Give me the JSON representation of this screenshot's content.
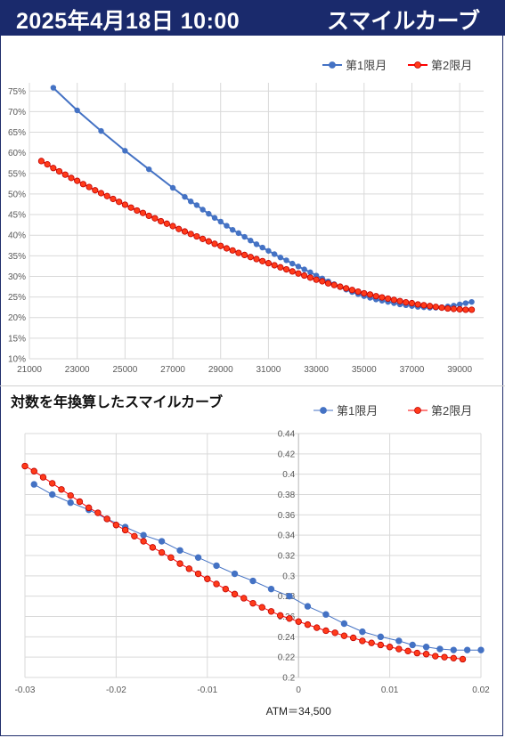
{
  "header": {
    "datetime": "2025年4月18日 10:00",
    "title": "スマイルカーブ"
  },
  "colors": {
    "header_bg": "#1a2a6c",
    "series1": "#4472c4",
    "series2": "#ff0000",
    "series2_fill": "#ff3b1a",
    "grid": "#d9d9d9"
  },
  "chart_data": [
    {
      "type": "line",
      "title": "",
      "xlabel": "",
      "ylabel": "",
      "xlim": [
        21000,
        40000
      ],
      "ylim": [
        0.1,
        0.77
      ],
      "xticks": [
        21000,
        23000,
        25000,
        27000,
        29000,
        31000,
        33000,
        35000,
        37000,
        39000
      ],
      "yticks": [
        0.1,
        0.15,
        0.2,
        0.25,
        0.3,
        0.35,
        0.4,
        0.45,
        0.5,
        0.55,
        0.6,
        0.65,
        0.7,
        0.75
      ],
      "ytick_labels": [
        "10%",
        "15%",
        "20%",
        "25%",
        "30%",
        "35%",
        "40%",
        "45%",
        "50%",
        "55%",
        "60%",
        "65%",
        "70%",
        "75%"
      ],
      "legend": "top-right",
      "grid": true,
      "series": [
        {
          "name": "第1限月",
          "x": [
            22000,
            23000,
            24000,
            25000,
            26000,
            27000,
            27500,
            27750,
            28000,
            28250,
            28500,
            28750,
            29000,
            29250,
            29500,
            29750,
            30000,
            30250,
            30500,
            30750,
            31000,
            31250,
            31500,
            31750,
            32000,
            32250,
            32500,
            32750,
            33000,
            33250,
            33500,
            33750,
            34000,
            34250,
            34500,
            34750,
            35000,
            35250,
            35500,
            35750,
            36000,
            36250,
            36500,
            36750,
            37000,
            37250,
            37500,
            37750,
            38000,
            38250,
            38500,
            38750,
            39000,
            39250,
            39500
          ],
          "values": [
            0.758,
            0.703,
            0.653,
            0.605,
            0.56,
            0.515,
            0.493,
            0.482,
            0.473,
            0.462,
            0.452,
            0.442,
            0.433,
            0.423,
            0.413,
            0.405,
            0.396,
            0.387,
            0.378,
            0.37,
            0.362,
            0.354,
            0.346,
            0.339,
            0.331,
            0.324,
            0.317,
            0.31,
            0.302,
            0.295,
            0.288,
            0.281,
            0.274,
            0.268,
            0.262,
            0.257,
            0.252,
            0.248,
            0.244,
            0.241,
            0.238,
            0.235,
            0.232,
            0.23,
            0.228,
            0.226,
            0.225,
            0.224,
            0.224,
            0.225,
            0.227,
            0.229,
            0.232,
            0.235,
            0.238
          ]
        },
        {
          "name": "第2限月",
          "x": [
            21500,
            21750,
            22000,
            22250,
            22500,
            22750,
            23000,
            23250,
            23500,
            23750,
            24000,
            24250,
            24500,
            24750,
            25000,
            25250,
            25500,
            25750,
            26000,
            26250,
            26500,
            26750,
            27000,
            27250,
            27500,
            27750,
            28000,
            28250,
            28500,
            28750,
            29000,
            29250,
            29500,
            29750,
            30000,
            30250,
            30500,
            30750,
            31000,
            31250,
            31500,
            31750,
            32000,
            32250,
            32500,
            32750,
            33000,
            33250,
            33500,
            33750,
            34000,
            34250,
            34500,
            34750,
            35000,
            35250,
            35500,
            35750,
            36000,
            36250,
            36500,
            36750,
            37000,
            37250,
            37500,
            37750,
            38000,
            38250,
            38500,
            38750,
            39000,
            39250,
            39500
          ],
          "values": [
            0.58,
            0.572,
            0.563,
            0.555,
            0.547,
            0.539,
            0.532,
            0.524,
            0.517,
            0.509,
            0.502,
            0.495,
            0.488,
            0.481,
            0.474,
            0.467,
            0.46,
            0.454,
            0.447,
            0.441,
            0.434,
            0.428,
            0.422,
            0.415,
            0.409,
            0.403,
            0.397,
            0.391,
            0.385,
            0.379,
            0.374,
            0.368,
            0.363,
            0.357,
            0.352,
            0.347,
            0.342,
            0.337,
            0.332,
            0.327,
            0.322,
            0.317,
            0.312,
            0.307,
            0.302,
            0.297,
            0.292,
            0.288,
            0.283,
            0.279,
            0.275,
            0.271,
            0.267,
            0.263,
            0.259,
            0.256,
            0.252,
            0.249,
            0.246,
            0.243,
            0.24,
            0.237,
            0.235,
            0.232,
            0.23,
            0.228,
            0.226,
            0.224,
            0.222,
            0.221,
            0.22,
            0.219,
            0.219
          ]
        }
      ]
    },
    {
      "type": "scatter",
      "title": "対数を年換算したスマイルカーブ",
      "xlabel": "ATM＝34,500",
      "ylabel": "",
      "xlim": [
        -0.03,
        0.02
      ],
      "ylim": [
        0.2,
        0.44
      ],
      "xticks": [
        -0.03,
        -0.02,
        -0.01,
        0,
        0.01,
        0.02
      ],
      "xtick_labels": [
        "-0.03",
        "-0.02",
        "-0.01",
        "0",
        "0.01",
        "0.02"
      ],
      "yticks": [
        0.2,
        0.22,
        0.24,
        0.26,
        0.28,
        0.3,
        0.32,
        0.34,
        0.36,
        0.38,
        0.4,
        0.42,
        0.44
      ],
      "ytick_labels": [
        "0.2",
        "0.22",
        "0.24",
        "0.26",
        "0.28",
        "0.3",
        "0.32",
        "0.34",
        "0.36",
        "0.38",
        "0.4",
        "0.42",
        "0.44"
      ],
      "legend": "top-right",
      "grid": true,
      "series": [
        {
          "name": "第1限月",
          "x": [
            -0.029,
            -0.027,
            -0.025,
            -0.023,
            -0.021,
            -0.019,
            -0.017,
            -0.015,
            -0.013,
            -0.011,
            -0.009,
            -0.007,
            -0.005,
            -0.003,
            -0.001,
            0.001,
            0.003,
            0.005,
            0.007,
            0.009,
            0.011,
            0.0125,
            0.014,
            0.0155,
            0.017,
            0.0185,
            0.02
          ],
          "values": [
            0.39,
            0.38,
            0.372,
            0.365,
            0.356,
            0.348,
            0.34,
            0.334,
            0.325,
            0.318,
            0.31,
            0.302,
            0.295,
            0.287,
            0.28,
            0.27,
            0.262,
            0.253,
            0.245,
            0.24,
            0.236,
            0.232,
            0.23,
            0.228,
            0.227,
            0.227,
            0.227
          ]
        },
        {
          "name": "第2限月",
          "x": [
            -0.03,
            -0.029,
            -0.028,
            -0.027,
            -0.026,
            -0.025,
            -0.024,
            -0.023,
            -0.022,
            -0.021,
            -0.02,
            -0.019,
            -0.018,
            -0.017,
            -0.016,
            -0.015,
            -0.014,
            -0.013,
            -0.012,
            -0.011,
            -0.01,
            -0.009,
            -0.008,
            -0.007,
            -0.006,
            -0.005,
            -0.004,
            -0.003,
            -0.002,
            -0.001,
            0,
            0.001,
            0.002,
            0.003,
            0.004,
            0.005,
            0.006,
            0.007,
            0.008,
            0.009,
            0.01,
            0.011,
            0.012,
            0.013,
            0.014,
            0.015,
            0.016,
            0.017,
            0.018
          ],
          "values": [
            0.408,
            0.403,
            0.397,
            0.391,
            0.385,
            0.379,
            0.373,
            0.367,
            0.362,
            0.356,
            0.35,
            0.345,
            0.339,
            0.334,
            0.328,
            0.323,
            0.318,
            0.312,
            0.307,
            0.302,
            0.297,
            0.292,
            0.287,
            0.282,
            0.278,
            0.273,
            0.269,
            0.265,
            0.261,
            0.258,
            0.255,
            0.252,
            0.249,
            0.246,
            0.244,
            0.241,
            0.239,
            0.236,
            0.234,
            0.232,
            0.23,
            0.228,
            0.226,
            0.224,
            0.223,
            0.221,
            0.22,
            0.219,
            0.218
          ]
        }
      ]
    }
  ]
}
